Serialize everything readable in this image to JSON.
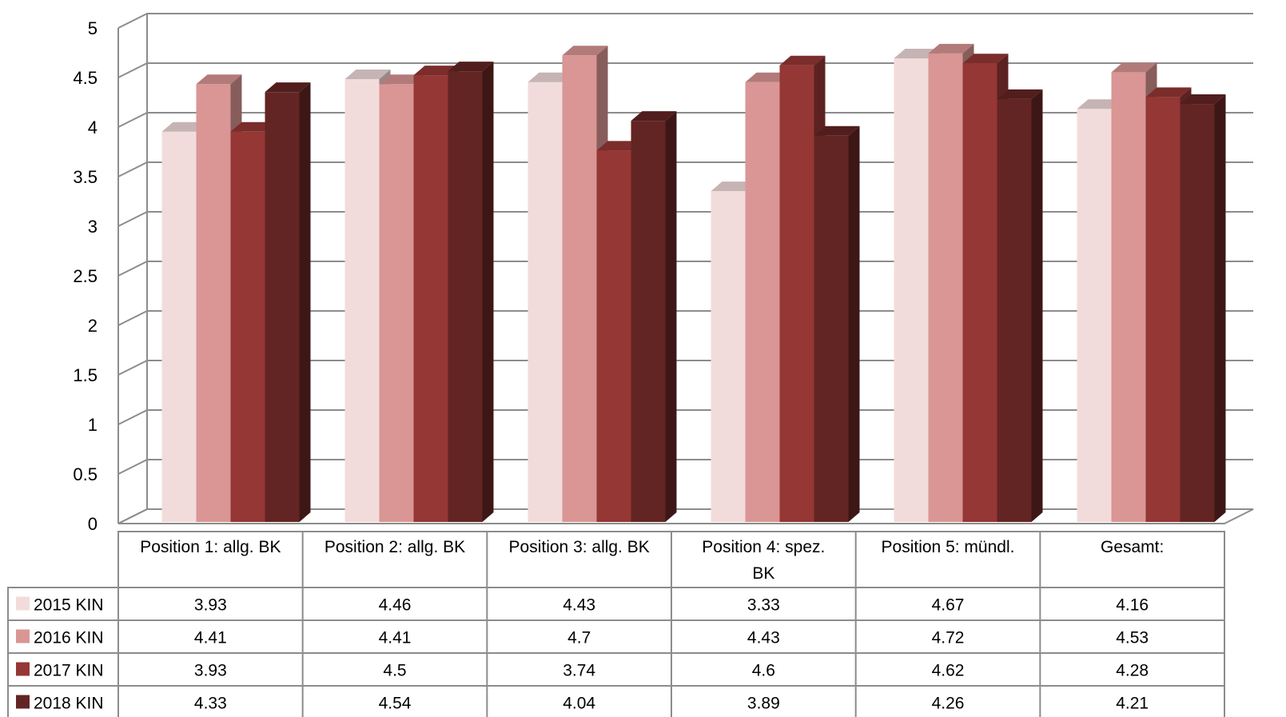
{
  "chart_data": {
    "type": "bar",
    "variant": "3d-clustered-column-with-data-table",
    "title": "",
    "xlabel": "",
    "ylabel": "",
    "ylim": [
      0,
      5
    ],
    "yticks": [
      "0",
      "0.5",
      "1",
      "1.5",
      "2",
      "2.5",
      "3",
      "3.5",
      "4",
      "4.5",
      "5"
    ],
    "grid": true,
    "legend": "data-table-left",
    "categories": [
      [
        "Position 1: allg. BK"
      ],
      [
        "Position 2: allg. BK"
      ],
      [
        "Position 3: allg. BK"
      ],
      [
        "Position 4: spez.",
        "BK"
      ],
      [
        "Position 5: mündl."
      ],
      [
        "Gesamt:"
      ]
    ],
    "series": [
      {
        "name": "2015 KIN",
        "color": "#f2dcdb",
        "values": [
          3.93,
          4.46,
          4.43,
          3.33,
          4.67,
          4.16
        ]
      },
      {
        "name": "2016 KIN",
        "color": "#d99694",
        "values": [
          4.41,
          4.41,
          4.7,
          4.43,
          4.72,
          4.53
        ]
      },
      {
        "name": "2017 KIN",
        "color": "#953735",
        "values": [
          3.93,
          4.5,
          3.74,
          4.6,
          4.62,
          4.28
        ]
      },
      {
        "name": "2018 KIN",
        "color": "#632523",
        "values": [
          4.33,
          4.54,
          4.04,
          3.89,
          4.26,
          4.21
        ]
      }
    ]
  }
}
